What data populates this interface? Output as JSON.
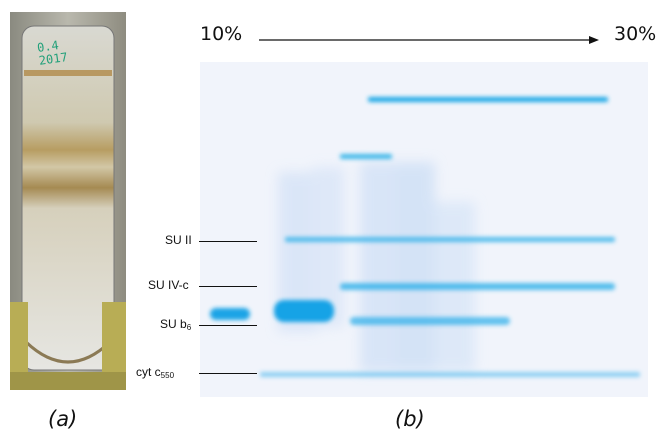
{
  "figure": {
    "panel_a_label": "(a)",
    "panel_b_label": "(b)",
    "tube_writing": [
      "0.4",
      "2017"
    ],
    "gradient": {
      "start_label": "10%",
      "end_label": "30%"
    },
    "band_labels": [
      {
        "text": "SU II",
        "sub": ""
      },
      {
        "text": "SU IV-c",
        "sub": ""
      },
      {
        "text": "SU b",
        "sub": "6"
      },
      {
        "text": "cyt c",
        "sub": "550"
      }
    ]
  }
}
